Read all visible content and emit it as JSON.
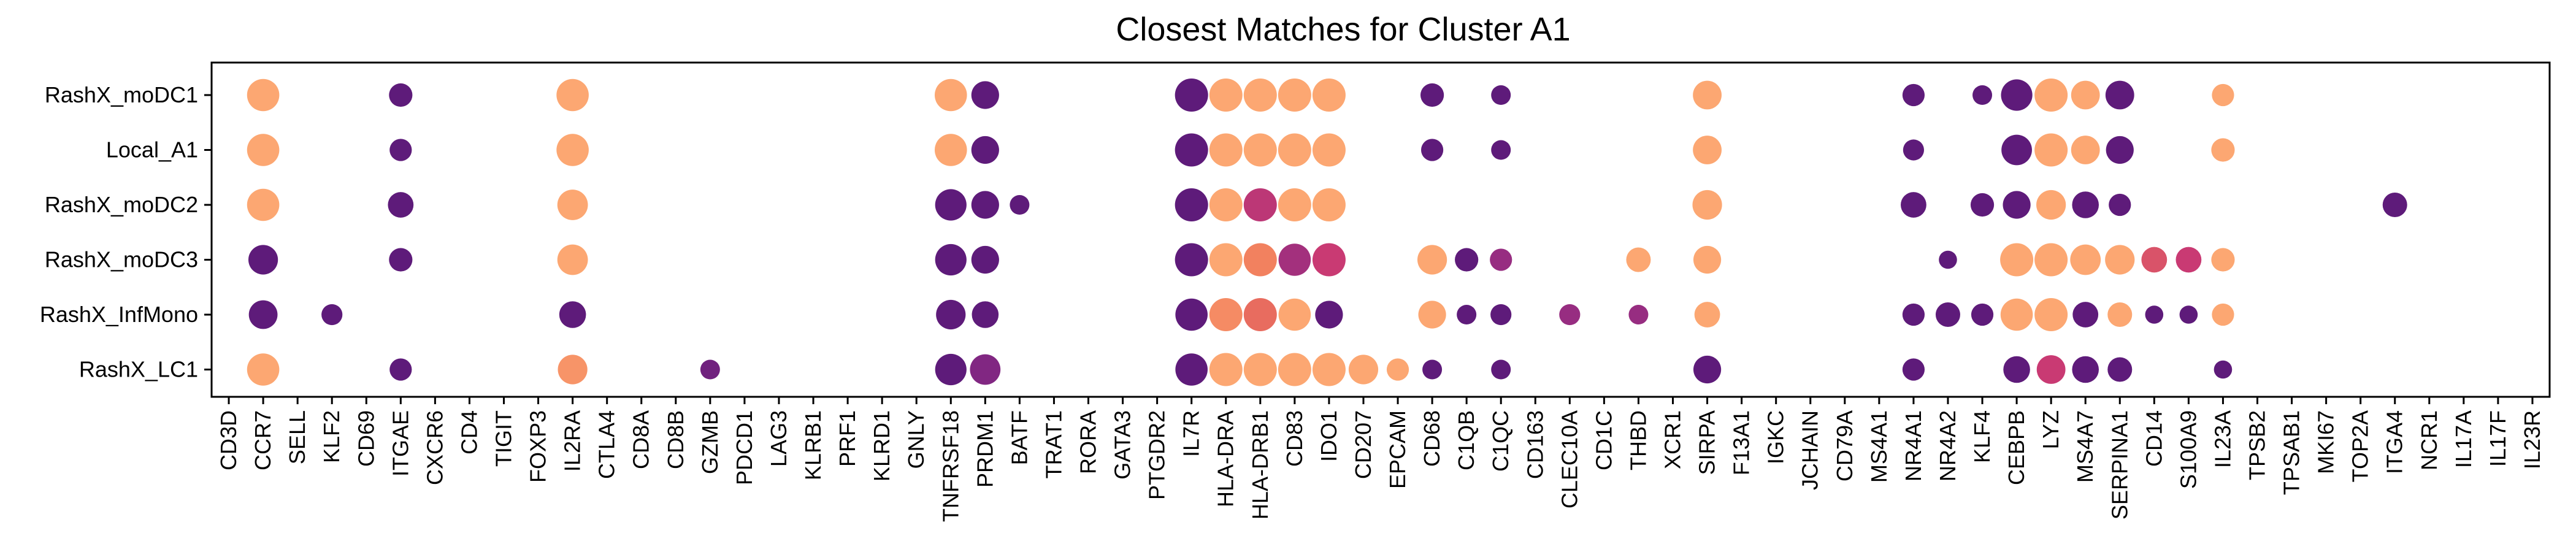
{
  "chart_data": {
    "type": "scatter",
    "title": "Closest Matches for Cluster A1",
    "xlabel": "",
    "ylabel": "",
    "legend": "none",
    "grid": false,
    "genes": [
      "CD3D",
      "CCR7",
      "SELL",
      "KLF2",
      "CD69",
      "ITGAE",
      "CXCR6",
      "CD4",
      "TIGIT",
      "FOXP3",
      "IL2RA",
      "CTLA4",
      "CD8A",
      "CD8B",
      "GZMB",
      "PDCD1",
      "LAG3",
      "KLRB1",
      "PRF1",
      "KLRD1",
      "GNLY",
      "TNFRSF18",
      "PRDM1",
      "BATF",
      "TRAT1",
      "RORA",
      "GATA3",
      "PTGDR2",
      "IL7R",
      "HLA-DRA",
      "HLA-DRB1",
      "CD83",
      "IDO1",
      "CD207",
      "EPCAM",
      "CD68",
      "C1QB",
      "C1QC",
      "CD163",
      "CLEC10A",
      "CD1C",
      "THBD",
      "XCR1",
      "SIRPA",
      "F13A1",
      "IGKC",
      "JCHAIN",
      "CD79A",
      "MS4A1",
      "NR4A1",
      "NR4A2",
      "KLF4",
      "CEBPB",
      "LYZ",
      "MS4A7",
      "SERPINA1",
      "CD14",
      "S100A9",
      "IL23A",
      "TPSB2",
      "TPSAB1",
      "MKI67",
      "TOP2A",
      "ITGA4",
      "NCR1",
      "IL17A",
      "IL17F",
      "IL23R"
    ],
    "clusters": [
      "RashX_moDC1",
      "Local_A1",
      "RashX_moDC2",
      "RashX_moDC3",
      "RashX_InfMono",
      "RashX_LC1"
    ],
    "size_scale": "fraction of cells expressing (0-1)",
    "color_scale": "mean expression, 0 = dark purple (#5e1b7a) to 1 = light orange (#fca772)",
    "colors": {
      "low": "#5e1b7a",
      "mid_low": "#8a2a84",
      "mid": "#c93a73",
      "mid_high": "#f0785a",
      "high": "#fca772"
    },
    "points": [
      {
        "gene": "CCR7",
        "cluster": "RashX_moDC1",
        "size": 0.95,
        "color": 1.0
      },
      {
        "gene": "ITGAE",
        "cluster": "RashX_moDC1",
        "size": 0.5,
        "color": 0.0
      },
      {
        "gene": "IL2RA",
        "cluster": "RashX_moDC1",
        "size": 0.95,
        "color": 1.0
      },
      {
        "gene": "TNFRSF18",
        "cluster": "RashX_moDC1",
        "size": 0.95,
        "color": 1.0
      },
      {
        "gene": "PRDM1",
        "cluster": "RashX_moDC1",
        "size": 0.7,
        "color": 0.0
      },
      {
        "gene": "IL7R",
        "cluster": "RashX_moDC1",
        "size": 1.0,
        "color": 0.0
      },
      {
        "gene": "HLA-DRA",
        "cluster": "RashX_moDC1",
        "size": 1.0,
        "color": 1.0
      },
      {
        "gene": "HLA-DRB1",
        "cluster": "RashX_moDC1",
        "size": 1.0,
        "color": 1.0
      },
      {
        "gene": "CD83",
        "cluster": "RashX_moDC1",
        "size": 1.0,
        "color": 1.0
      },
      {
        "gene": "IDO1",
        "cluster": "RashX_moDC1",
        "size": 1.0,
        "color": 1.0
      },
      {
        "gene": "CD68",
        "cluster": "RashX_moDC1",
        "size": 0.5,
        "color": 0.0
      },
      {
        "gene": "C1QC",
        "cluster": "RashX_moDC1",
        "size": 0.35,
        "color": 0.0
      },
      {
        "gene": "SIRPA",
        "cluster": "RashX_moDC1",
        "size": 0.75,
        "color": 1.0
      },
      {
        "gene": "NR4A1",
        "cluster": "RashX_moDC1",
        "size": 0.45,
        "color": 0.0
      },
      {
        "gene": "KLF4",
        "cluster": "RashX_moDC1",
        "size": 0.35,
        "color": 0.0
      },
      {
        "gene": "CEBPB",
        "cluster": "RashX_moDC1",
        "size": 0.9,
        "color": 0.0
      },
      {
        "gene": "LYZ",
        "cluster": "RashX_moDC1",
        "size": 1.0,
        "color": 1.0
      },
      {
        "gene": "MS4A7",
        "cluster": "RashX_moDC1",
        "size": 0.75,
        "color": 1.0
      },
      {
        "gene": "SERPINA1",
        "cluster": "RashX_moDC1",
        "size": 0.75,
        "color": 0.0
      },
      {
        "gene": "IL23A",
        "cluster": "RashX_moDC1",
        "size": 0.45,
        "color": 1.0
      },
      {
        "gene": "CCR7",
        "cluster": "Local_A1",
        "size": 0.95,
        "color": 1.0
      },
      {
        "gene": "ITGAE",
        "cluster": "Local_A1",
        "size": 0.45,
        "color": 0.0
      },
      {
        "gene": "IL2RA",
        "cluster": "Local_A1",
        "size": 0.95,
        "color": 1.0
      },
      {
        "gene": "TNFRSF18",
        "cluster": "Local_A1",
        "size": 0.95,
        "color": 1.0
      },
      {
        "gene": "PRDM1",
        "cluster": "Local_A1",
        "size": 0.7,
        "color": 0.0
      },
      {
        "gene": "IL7R",
        "cluster": "Local_A1",
        "size": 1.0,
        "color": 0.0
      },
      {
        "gene": "HLA-DRA",
        "cluster": "Local_A1",
        "size": 1.0,
        "color": 1.0
      },
      {
        "gene": "HLA-DRB1",
        "cluster": "Local_A1",
        "size": 1.0,
        "color": 1.0
      },
      {
        "gene": "CD83",
        "cluster": "Local_A1",
        "size": 1.0,
        "color": 1.0
      },
      {
        "gene": "IDO1",
        "cluster": "Local_A1",
        "size": 1.0,
        "color": 1.0
      },
      {
        "gene": "CD68",
        "cluster": "Local_A1",
        "size": 0.45,
        "color": 0.0
      },
      {
        "gene": "C1QC",
        "cluster": "Local_A1",
        "size": 0.35,
        "color": 0.0
      },
      {
        "gene": "SIRPA",
        "cluster": "Local_A1",
        "size": 0.75,
        "color": 1.0
      },
      {
        "gene": "NR4A1",
        "cluster": "Local_A1",
        "size": 0.4,
        "color": 0.0
      },
      {
        "gene": "CEBPB",
        "cluster": "Local_A1",
        "size": 0.85,
        "color": 0.0
      },
      {
        "gene": "LYZ",
        "cluster": "Local_A1",
        "size": 1.0,
        "color": 1.0
      },
      {
        "gene": "MS4A7",
        "cluster": "Local_A1",
        "size": 0.75,
        "color": 1.0
      },
      {
        "gene": "SERPINA1",
        "cluster": "Local_A1",
        "size": 0.7,
        "color": 0.0
      },
      {
        "gene": "IL23A",
        "cluster": "Local_A1",
        "size": 0.5,
        "color": 1.0
      },
      {
        "gene": "CCR7",
        "cluster": "RashX_moDC2",
        "size": 0.95,
        "color": 1.0
      },
      {
        "gene": "ITGAE",
        "cluster": "RashX_moDC2",
        "size": 0.6,
        "color": 0.0
      },
      {
        "gene": "IL2RA",
        "cluster": "RashX_moDC2",
        "size": 0.85,
        "color": 1.0
      },
      {
        "gene": "TNFRSF18",
        "cluster": "RashX_moDC2",
        "size": 0.9,
        "color": 0.0
      },
      {
        "gene": "PRDM1",
        "cluster": "RashX_moDC2",
        "size": 0.7,
        "color": 0.0
      },
      {
        "gene": "BATF",
        "cluster": "RashX_moDC2",
        "size": 0.35,
        "color": 0.0
      },
      {
        "gene": "IL7R",
        "cluster": "RashX_moDC2",
        "size": 1.0,
        "color": 0.0
      },
      {
        "gene": "HLA-DRA",
        "cluster": "RashX_moDC2",
        "size": 1.0,
        "color": 1.0
      },
      {
        "gene": "HLA-DRB1",
        "cluster": "RashX_moDC2",
        "size": 1.0,
        "color": 0.45
      },
      {
        "gene": "CD83",
        "cluster": "RashX_moDC2",
        "size": 1.0,
        "color": 1.0
      },
      {
        "gene": "IDO1",
        "cluster": "RashX_moDC2",
        "size": 1.0,
        "color": 1.0
      },
      {
        "gene": "SIRPA",
        "cluster": "RashX_moDC2",
        "size": 0.8,
        "color": 1.0
      },
      {
        "gene": "NR4A1",
        "cluster": "RashX_moDC2",
        "size": 0.6,
        "color": 0.0
      },
      {
        "gene": "KLF4",
        "cluster": "RashX_moDC2",
        "size": 0.5,
        "color": 0.0
      },
      {
        "gene": "CEBPB",
        "cluster": "RashX_moDC2",
        "size": 0.7,
        "color": 0.0
      },
      {
        "gene": "LYZ",
        "cluster": "RashX_moDC2",
        "size": 0.8,
        "color": 1.0
      },
      {
        "gene": "MS4A7",
        "cluster": "RashX_moDC2",
        "size": 0.65,
        "color": 0.0
      },
      {
        "gene": "SERPINA1",
        "cluster": "RashX_moDC2",
        "size": 0.45,
        "color": 0.0
      },
      {
        "gene": "ITGA4",
        "cluster": "RashX_moDC2",
        "size": 0.55,
        "color": 0.0
      },
      {
        "gene": "CCR7",
        "cluster": "RashX_moDC3",
        "size": 0.8,
        "color": 0.0
      },
      {
        "gene": "ITGAE",
        "cluster": "RashX_moDC3",
        "size": 0.5,
        "color": 0.0
      },
      {
        "gene": "IL2RA",
        "cluster": "RashX_moDC3",
        "size": 0.85,
        "color": 1.0
      },
      {
        "gene": "TNFRSF18",
        "cluster": "RashX_moDC3",
        "size": 0.9,
        "color": 0.0
      },
      {
        "gene": "PRDM1",
        "cluster": "RashX_moDC3",
        "size": 0.7,
        "color": 0.0
      },
      {
        "gene": "IL7R",
        "cluster": "RashX_moDC3",
        "size": 1.0,
        "color": 0.0
      },
      {
        "gene": "HLA-DRA",
        "cluster": "RashX_moDC3",
        "size": 1.0,
        "color": 1.0
      },
      {
        "gene": "HLA-DRB1",
        "cluster": "RashX_moDC3",
        "size": 1.0,
        "color": 0.8
      },
      {
        "gene": "CD83",
        "cluster": "RashX_moDC3",
        "size": 0.95,
        "color": 0.35
      },
      {
        "gene": "IDO1",
        "cluster": "RashX_moDC3",
        "size": 1.0,
        "color": 0.5
      },
      {
        "gene": "CD68",
        "cluster": "RashX_moDC3",
        "size": 0.8,
        "color": 1.0
      },
      {
        "gene": "C1QB",
        "cluster": "RashX_moDC3",
        "size": 0.5,
        "color": 0.0
      },
      {
        "gene": "C1QC",
        "cluster": "RashX_moDC3",
        "size": 0.45,
        "color": 0.3
      },
      {
        "gene": "THBD",
        "cluster": "RashX_moDC3",
        "size": 0.55,
        "color": 1.0
      },
      {
        "gene": "SIRPA",
        "cluster": "RashX_moDC3",
        "size": 0.7,
        "color": 1.0
      },
      {
        "gene": "NR4A2",
        "cluster": "RashX_moDC3",
        "size": 0.3,
        "color": 0.0
      },
      {
        "gene": "CEBPB",
        "cluster": "RashX_moDC3",
        "size": 1.0,
        "color": 1.0
      },
      {
        "gene": "LYZ",
        "cluster": "RashX_moDC3",
        "size": 1.0,
        "color": 1.0
      },
      {
        "gene": "MS4A7",
        "cluster": "RashX_moDC3",
        "size": 0.85,
        "color": 1.0
      },
      {
        "gene": "SERPINA1",
        "cluster": "RashX_moDC3",
        "size": 0.8,
        "color": 1.0
      },
      {
        "gene": "CD14",
        "cluster": "RashX_moDC3",
        "size": 0.6,
        "color": 0.6
      },
      {
        "gene": "S100A9",
        "cluster": "RashX_moDC3",
        "size": 0.6,
        "color": 0.5
      },
      {
        "gene": "IL23A",
        "cluster": "RashX_moDC3",
        "size": 0.5,
        "color": 1.0
      },
      {
        "gene": "CCR7",
        "cluster": "RashX_InfMono",
        "size": 0.75,
        "color": 0.0
      },
      {
        "gene": "KLF2",
        "cluster": "RashX_InfMono",
        "size": 0.4,
        "color": 0.0
      },
      {
        "gene": "IL2RA",
        "cluster": "RashX_InfMono",
        "size": 0.65,
        "color": 0.0
      },
      {
        "gene": "TNFRSF18",
        "cluster": "RashX_InfMono",
        "size": 0.8,
        "color": 0.0
      },
      {
        "gene": "PRDM1",
        "cluster": "RashX_InfMono",
        "size": 0.65,
        "color": 0.0
      },
      {
        "gene": "IL7R",
        "cluster": "RashX_InfMono",
        "size": 0.95,
        "color": 0.0
      },
      {
        "gene": "HLA-DRA",
        "cluster": "RashX_InfMono",
        "size": 1.0,
        "color": 0.85
      },
      {
        "gene": "HLA-DRB1",
        "cluster": "RashX_InfMono",
        "size": 1.0,
        "color": 0.7
      },
      {
        "gene": "CD83",
        "cluster": "RashX_InfMono",
        "size": 0.95,
        "color": 1.0
      },
      {
        "gene": "IDO1",
        "cluster": "RashX_InfMono",
        "size": 0.7,
        "color": 0.0
      },
      {
        "gene": "CD68",
        "cluster": "RashX_InfMono",
        "size": 0.7,
        "color": 1.0
      },
      {
        "gene": "C1QB",
        "cluster": "RashX_InfMono",
        "size": 0.35,
        "color": 0.0
      },
      {
        "gene": "C1QC",
        "cluster": "RashX_InfMono",
        "size": 0.4,
        "color": 0.0
      },
      {
        "gene": "CLEC10A",
        "cluster": "RashX_InfMono",
        "size": 0.4,
        "color": 0.3
      },
      {
        "gene": "THBD",
        "cluster": "RashX_InfMono",
        "size": 0.35,
        "color": 0.3
      },
      {
        "gene": "SIRPA",
        "cluster": "RashX_InfMono",
        "size": 0.6,
        "color": 1.0
      },
      {
        "gene": "NR4A1",
        "cluster": "RashX_InfMono",
        "size": 0.45,
        "color": 0.0
      },
      {
        "gene": "NR4A2",
        "cluster": "RashX_InfMono",
        "size": 0.55,
        "color": 0.0
      },
      {
        "gene": "KLF4",
        "cluster": "RashX_InfMono",
        "size": 0.45,
        "color": 0.0
      },
      {
        "gene": "CEBPB",
        "cluster": "RashX_InfMono",
        "size": 0.95,
        "color": 1.0
      },
      {
        "gene": "LYZ",
        "cluster": "RashX_InfMono",
        "size": 1.0,
        "color": 1.0
      },
      {
        "gene": "MS4A7",
        "cluster": "RashX_InfMono",
        "size": 0.6,
        "color": 0.0
      },
      {
        "gene": "SERPINA1",
        "cluster": "RashX_InfMono",
        "size": 0.55,
        "color": 1.0
      },
      {
        "gene": "CD14",
        "cluster": "RashX_InfMono",
        "size": 0.3,
        "color": 0.0
      },
      {
        "gene": "S100A9",
        "cluster": "RashX_InfMono",
        "size": 0.3,
        "color": 0.0
      },
      {
        "gene": "IL23A",
        "cluster": "RashX_InfMono",
        "size": 0.45,
        "color": 1.0
      },
      {
        "gene": "CCR7",
        "cluster": "RashX_LC1",
        "size": 0.95,
        "color": 1.0
      },
      {
        "gene": "ITGAE",
        "cluster": "RashX_LC1",
        "size": 0.45,
        "color": 0.0
      },
      {
        "gene": "IL2RA",
        "cluster": "RashX_LC1",
        "size": 0.8,
        "color": 0.9
      },
      {
        "gene": "GZMB",
        "cluster": "RashX_LC1",
        "size": 0.35,
        "color": 0.1
      },
      {
        "gene": "TNFRSF18",
        "cluster": "RashX_LC1",
        "size": 0.9,
        "color": 0.0
      },
      {
        "gene": "PRDM1",
        "cluster": "RashX_LC1",
        "size": 0.85,
        "color": 0.2
      },
      {
        "gene": "IL7R",
        "cluster": "RashX_LC1",
        "size": 0.95,
        "color": 0.0
      },
      {
        "gene": "HLA-DRA",
        "cluster": "RashX_LC1",
        "size": 1.0,
        "color": 1.0
      },
      {
        "gene": "HLA-DRB1",
        "cluster": "RashX_LC1",
        "size": 1.0,
        "color": 1.0
      },
      {
        "gene": "CD83",
        "cluster": "RashX_LC1",
        "size": 1.0,
        "color": 1.0
      },
      {
        "gene": "IDO1",
        "cluster": "RashX_LC1",
        "size": 1.0,
        "color": 1.0
      },
      {
        "gene": "CD207",
        "cluster": "RashX_LC1",
        "size": 0.8,
        "color": 1.0
      },
      {
        "gene": "EPCAM",
        "cluster": "RashX_LC1",
        "size": 0.45,
        "color": 1.0
      },
      {
        "gene": "CD68",
        "cluster": "RashX_LC1",
        "size": 0.35,
        "color": 0.0
      },
      {
        "gene": "C1QC",
        "cluster": "RashX_LC1",
        "size": 0.35,
        "color": 0.0
      },
      {
        "gene": "SIRPA",
        "cluster": "RashX_LC1",
        "size": 0.7,
        "color": 0.0
      },
      {
        "gene": "NR4A1",
        "cluster": "RashX_LC1",
        "size": 0.45,
        "color": 0.0
      },
      {
        "gene": "CEBPB",
        "cluster": "RashX_LC1",
        "size": 0.65,
        "color": 0.0
      },
      {
        "gene": "LYZ",
        "cluster": "RashX_LC1",
        "size": 0.75,
        "color": 0.5
      },
      {
        "gene": "MS4A7",
        "cluster": "RashX_LC1",
        "size": 0.65,
        "color": 0.0
      },
      {
        "gene": "SERPINA1",
        "cluster": "RashX_LC1",
        "size": 0.55,
        "color": 0.0
      },
      {
        "gene": "IL23A",
        "cluster": "RashX_LC1",
        "size": 0.3,
        "color": 0.0
      }
    ]
  }
}
